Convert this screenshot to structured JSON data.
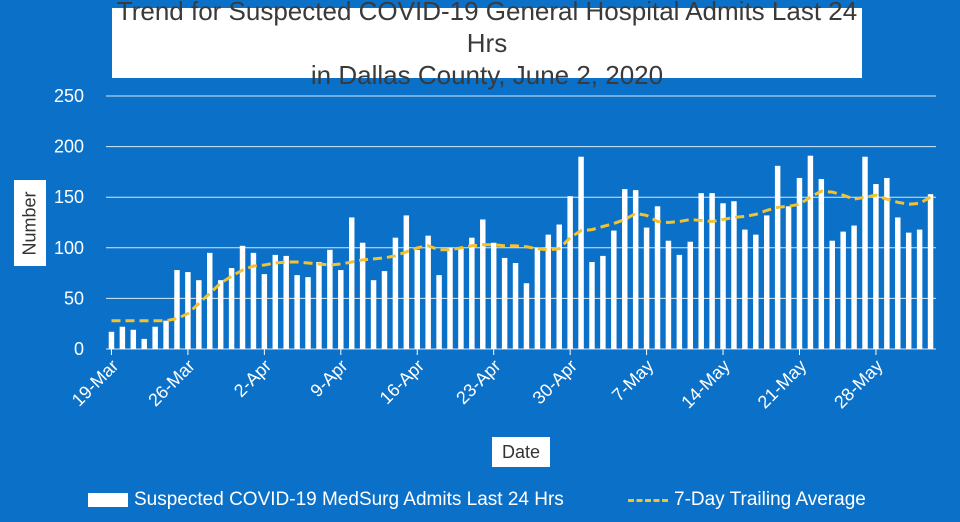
{
  "chart_data": {
    "type": "bar",
    "title": "Trend for Suspected COVID-19 General Hospital Admits Last 24 Hrs",
    "subtitle": "in Dallas County, June 2, 2020",
    "xlabel": "Date",
    "ylabel": "Number",
    "ylim": [
      0,
      250
    ],
    "yticks": [
      "0",
      "50",
      "100",
      "150",
      "200",
      "250"
    ],
    "grid": true,
    "legend_position": "bottom",
    "x_tick_labels": [
      "19-Mar",
      "26-Mar",
      "2-Apr",
      "9-Apr",
      "16-Apr",
      "23-Apr",
      "30-Apr",
      "7-May",
      "14-May",
      "21-May",
      "28-May"
    ],
    "colors": {
      "background": "#0B70C8",
      "bars": "#FFFFFF",
      "average": "#F2C230"
    },
    "series": [
      {
        "name": "Suspected COVID-19 MedSurg Admits Last 24 Hrs",
        "kind": "bar",
        "values": [
          17,
          22,
          19,
          10,
          22,
          28,
          78,
          76,
          68,
          95,
          68,
          80,
          102,
          95,
          74,
          93,
          92,
          73,
          71,
          86,
          98,
          78,
          130,
          105,
          68,
          77,
          110,
          132,
          98,
          112,
          73,
          100,
          100,
          110,
          128,
          105,
          90,
          85,
          65,
          100,
          113,
          123,
          151,
          190,
          86,
          92,
          117,
          158,
          157,
          120,
          141,
          107,
          93,
          106,
          154,
          154,
          144,
          146,
          118,
          113,
          132,
          181,
          141,
          169,
          191,
          168,
          107,
          116,
          122,
          190,
          163,
          169,
          130,
          115,
          118,
          153
        ]
      },
      {
        "name": "7-Day Trailing Average",
        "kind": "line",
        "values": [
          28,
          28,
          28,
          28,
          28,
          28,
          30,
          35,
          45,
          55,
          65,
          72,
          78,
          82,
          83,
          85,
          86,
          86,
          85,
          84,
          83,
          84,
          86,
          88,
          89,
          90,
          92,
          96,
          100,
          102,
          98,
          98,
          100,
          102,
          103,
          103,
          102,
          102,
          101,
          99,
          98,
          99,
          110,
          117,
          118,
          121,
          124,
          128,
          134,
          132,
          126,
          125,
          126,
          128,
          127,
          126,
          128,
          130,
          131,
          133,
          137,
          140,
          141,
          143,
          150,
          156,
          155,
          152,
          148,
          150,
          152,
          148,
          145,
          143,
          144,
          150
        ]
      }
    ]
  }
}
